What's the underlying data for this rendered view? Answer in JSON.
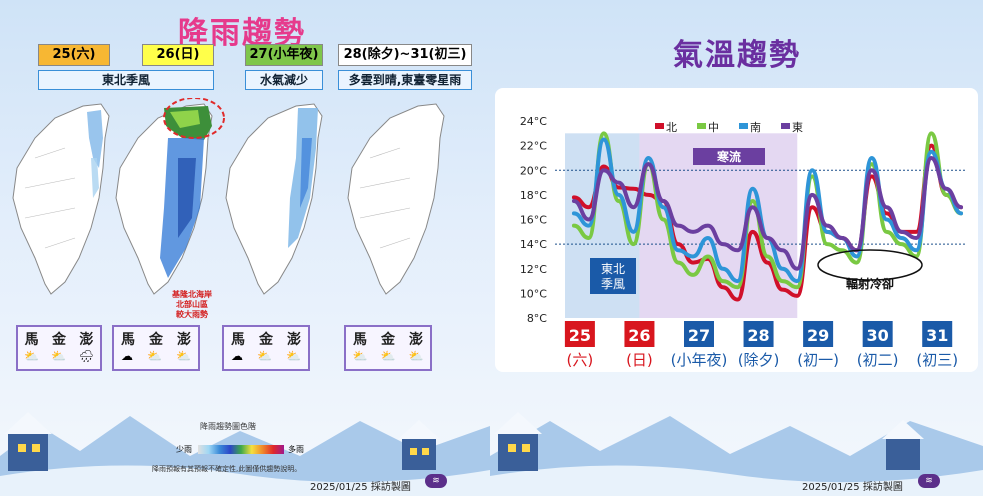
{
  "rain": {
    "title": "降雨趨勢",
    "dates": [
      {
        "label": "25(六)",
        "bg": "#f7b733"
      },
      {
        "label": "26(日)",
        "bg": "#ffff4a"
      },
      {
        "label": "27(小年夜)",
        "bg": "#7fc64a"
      },
      {
        "label": "28(除夕)~31(初三)",
        "bg": "#ffffff"
      }
    ],
    "notes": [
      "東北季風",
      "水氣減少",
      "多雲到晴,東臺零星雨"
    ],
    "map_note": "基隆北海岸\n北部山區\n較大雨勢",
    "islands": [
      {
        "names": [
          "馬",
          "金",
          "澎"
        ],
        "icons": [
          "sun-cloud-icon",
          "sun-cloud-icon",
          "rain-cloud-icon"
        ]
      },
      {
        "names": [
          "馬",
          "金",
          "澎"
        ],
        "icons": [
          "cloud-icon",
          "sun-cloud-icon",
          "sun-cloud-icon"
        ]
      },
      {
        "names": [
          "馬",
          "金",
          "澎"
        ],
        "icons": [
          "cloud-icon",
          "sun-cloud-icon",
          "sun-cloud-icon"
        ]
      },
      {
        "names": [
          "馬",
          "金",
          "澎"
        ],
        "icons": [
          "sun-cloud-icon",
          "sun-cloud-icon",
          "sun-cloud-icon"
        ]
      }
    ],
    "legend_title": "降雨趨勢圖色階",
    "legend_low": "少雨",
    "legend_high": "多雨",
    "disclaimer": "降雨預報有其預報不確定性,此圖僅供趨勢說明。",
    "credit": "2025/01/25 採訪製圖"
  },
  "temp": {
    "title": "氣溫趨勢",
    "credit": "2025/01/25 採訪製圖",
    "annotations": {
      "cold_wave": "寒流",
      "monsoon": "東北\n季風",
      "radiative": "輻射冷卻"
    }
  },
  "chart_data": {
    "type": "line",
    "ylim": [
      8,
      24
    ],
    "yticks": [
      "8°C",
      "10°C",
      "12°C",
      "14°C",
      "16°C",
      "18°C",
      "20°C",
      "22°C",
      "24°C"
    ],
    "days": [
      {
        "num": "25",
        "sub": "(六)",
        "weekend": true
      },
      {
        "num": "26",
        "sub": "(日)",
        "weekend": true
      },
      {
        "num": "27",
        "sub": "(小年夜)",
        "weekend": false
      },
      {
        "num": "28",
        "sub": "(除夕)",
        "weekend": false
      },
      {
        "num": "29",
        "sub": "(初一)",
        "weekend": false
      },
      {
        "num": "30",
        "sub": "(初二)",
        "weekend": false
      },
      {
        "num": "31",
        "sub": "(初三)",
        "weekend": false
      }
    ],
    "x": [
      0,
      0.25,
      0.5,
      0.75,
      1,
      1.25,
      1.5,
      1.75,
      2,
      2.25,
      2.5,
      2.75,
      3,
      3.25,
      3.5,
      3.75,
      4,
      4.25,
      4.5,
      4.75,
      5,
      5.25,
      5.5,
      5.75,
      6,
      6.25,
      6.5
    ],
    "series": [
      {
        "name": "北",
        "color": "#d0102a",
        "values": [
          17.8,
          17,
          20.3,
          18.6,
          18.5,
          18,
          17.5,
          14,
          12.5,
          12.8,
          10.5,
          9.5,
          15,
          12.5,
          10.3,
          9.8,
          17,
          15,
          14.5,
          13.5,
          19.5,
          16.5,
          15,
          15,
          22,
          18,
          17
        ]
      },
      {
        "name": "中",
        "color": "#7ac943",
        "values": [
          15.5,
          14.5,
          23,
          17.5,
          14,
          20.5,
          16,
          12.5,
          11.5,
          13,
          11,
          10.5,
          17.5,
          13,
          11,
          10.5,
          19.5,
          14,
          13.5,
          12.5,
          20.5,
          15,
          14,
          13,
          23,
          18,
          16.5
        ]
      },
      {
        "name": "南",
        "color": "#2e95d8",
        "values": [
          16.5,
          15.5,
          22.5,
          18,
          15,
          21,
          17,
          13.5,
          13,
          14.5,
          12,
          11,
          18.5,
          14.5,
          12,
          11,
          20,
          15,
          14.5,
          13,
          21,
          16,
          14.5,
          13.5,
          21.5,
          18.5,
          16.5
        ]
      },
      {
        "name": "東",
        "color": "#6b3fa0",
        "values": [
          17.5,
          16,
          20,
          19,
          17,
          20.5,
          17.5,
          15.5,
          15,
          15.5,
          14,
          13.5,
          17,
          14.5,
          13.5,
          12,
          18,
          15.5,
          14.5,
          13.5,
          20,
          17,
          15,
          14.5,
          21,
          18.5,
          17
        ]
      }
    ],
    "reference_lines": [
      20,
      14
    ],
    "legend_position": "top"
  }
}
